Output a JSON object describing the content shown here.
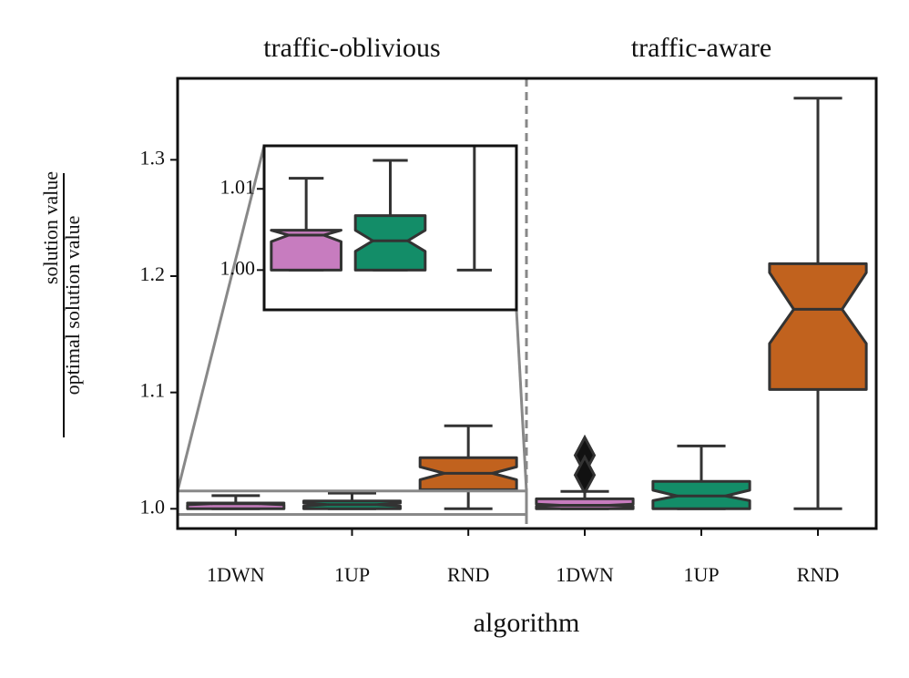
{
  "chart_data": {
    "type": "box",
    "xlabel": "algorithm",
    "ylabel_numerator": "solution value",
    "ylabel_denominator": "optimal solution value",
    "ylim": [
      0.983,
      1.37
    ],
    "yticks": [
      {
        "value": 1.0,
        "label": "1.0"
      },
      1.1,
      1.2,
      1.3
    ],
    "panels": [
      {
        "title": "traffic-oblivious",
        "categories": [
          "1DWN",
          "1UP",
          "RND"
        ],
        "colors": [
          "#c77cbf",
          "#138d68",
          "#c1621e"
        ],
        "boxes": [
          {
            "whislo": 1.0,
            "q1": 1.0,
            "med": 1.0043,
            "q3": 1.0049,
            "whishi": 1.0113,
            "notch": [
              1.0035,
              1.0049
            ],
            "fliers": []
          },
          {
            "whislo": 1.0,
            "q1": 1.0,
            "med": 1.0036,
            "q3": 1.0067,
            "whishi": 1.0135,
            "notch": [
              1.0023,
              1.0049
            ],
            "fliers": []
          },
          {
            "whislo": 1.0,
            "q1": 1.0164,
            "med": 1.0305,
            "q3": 1.0439,
            "whishi": 1.0713,
            "notch": [
              1.025,
              1.036
            ],
            "fliers": []
          }
        ]
      },
      {
        "title": "traffic-aware",
        "categories": [
          "1DWN",
          "1UP",
          "RND"
        ],
        "colors": [
          "#c77cbf",
          "#138d68",
          "#c1621e"
        ],
        "boxes": [
          {
            "whislo": 1.0,
            "q1": 1.0,
            "med": 1.003,
            "q3": 1.0086,
            "whishi": 1.0149,
            "notch": [
              1.002,
              1.004
            ],
            "fliers": [
              1.046,
              1.029
            ]
          },
          {
            "whislo": 1.0,
            "q1": 1.0,
            "med": 1.011,
            "q3": 1.0235,
            "whishi": 1.054,
            "notch": [
              1.007,
              1.016
            ],
            "fliers": []
          },
          {
            "whislo": 1.0,
            "q1": 1.1026,
            "med": 1.1715,
            "q3": 1.2107,
            "whishi": 1.353,
            "notch": [
              1.142,
              1.203
            ],
            "fliers": []
          }
        ]
      }
    ],
    "inset": {
      "panel": 0,
      "ylim": [
        0.9951,
        1.0153
      ],
      "yticks": [
        {
          "value": 1.0,
          "label": "1.00"
        },
        {
          "value": 1.01,
          "label": "1.01"
        }
      ]
    }
  }
}
